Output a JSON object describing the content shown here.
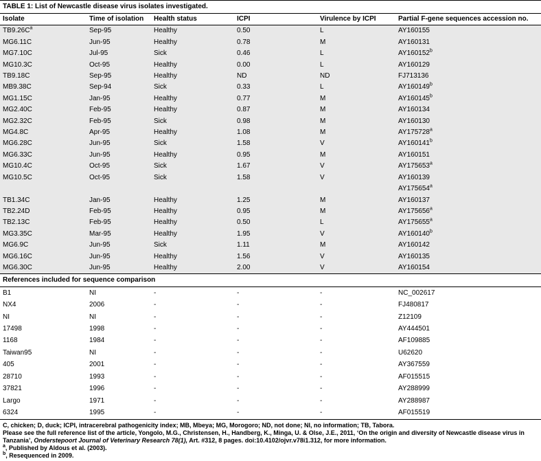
{
  "title": "TABLE 1: List of Newcastle disease virus isolates investigated.",
  "columns": [
    "Isolate",
    "Time of isolation",
    "Health status",
    "ICPI",
    "Virulence by ICPI",
    "Partial F-gene sequences accession no."
  ],
  "isolates": [
    {
      "isolate": "TB9.26C",
      "isolate_sup": "a",
      "time": "Sep-95",
      "health": "Healthy",
      "icpi": "0.50",
      "virulence": "L",
      "accession": "AY160155"
    },
    {
      "isolate": "MG6.11C",
      "time": "Jun-95",
      "health": "Healthy",
      "icpi": "0.78",
      "virulence": "M",
      "accession": "AY160131"
    },
    {
      "isolate": "MG7.10C",
      "time": "Jul-95",
      "health": "Sick",
      "icpi": "0.46",
      "virulence": "L",
      "accession": "AY160152",
      "accession_sup": "b"
    },
    {
      "isolate": "MG10.3C",
      "time": "Oct-95",
      "health": "Healthy",
      "icpi": "0.00",
      "virulence": "L",
      "accession": "AY160129"
    },
    {
      "isolate": "TB9.18C",
      "time": "Sep-95",
      "health": "Healthy",
      "icpi": "ND",
      "virulence": "ND",
      "accession": "FJ713136"
    },
    {
      "isolate": "MB9.38C",
      "time": "Sep-94",
      "health": "Sick",
      "icpi": "0.33",
      "virulence": "L",
      "accession": "AY160149",
      "accession_sup": "b"
    },
    {
      "isolate": "MG1.15C",
      "time": "Jan-95",
      "health": "Healthy",
      "icpi": "0.77",
      "virulence": "M",
      "accession": "AY160145",
      "accession_sup": "b"
    },
    {
      "isolate": "MG2.40C",
      "time": "Feb-95",
      "health": "Healthy",
      "icpi": "0.87",
      "virulence": "M",
      "accession": "AY160134"
    },
    {
      "isolate": "MG2.32C",
      "time": "Feb-95",
      "health": "Sick",
      "icpi": "0.98",
      "virulence": "M",
      "accession": "AY160130"
    },
    {
      "isolate": "MG4.8C",
      "time": "Apr-95",
      "health": "Healthy",
      "icpi": "1.08",
      "virulence": "M",
      "accession": "AY175728",
      "accession_sup": "a"
    },
    {
      "isolate": "MG6.28C",
      "time": "Jun-95",
      "health": "Sick",
      "icpi": "1.58",
      "virulence": "V",
      "accession": "AY160141",
      "accession_sup": "b"
    },
    {
      "isolate": "MG6.33C",
      "time": "Jun-95",
      "health": "Healthy",
      "icpi": "0.95",
      "virulence": "M",
      "accession": "AY160151"
    },
    {
      "isolate": "MG10.4C",
      "time": "Oct-95",
      "health": "Sick",
      "icpi": "1.67",
      "virulence": "V",
      "accession": "AY175653",
      "accession_sup": "a"
    },
    {
      "isolate": "MG10.5C",
      "time": "Oct-95",
      "health": "Sick",
      "icpi": "1.58",
      "virulence": "V",
      "accession": "AY160139"
    },
    {
      "isolate": "",
      "time": "",
      "health": "",
      "icpi": "",
      "virulence": "",
      "accession": "AY175654",
      "accession_sup": "a"
    },
    {
      "isolate": "TB1.34C",
      "time": "Jan-95",
      "health": "Healthy",
      "icpi": "1.25",
      "virulence": "M",
      "accession": "AY160137"
    },
    {
      "isolate": "TB2.24D",
      "time": "Feb-95",
      "health": "Healthy",
      "icpi": "0.95",
      "virulence": "M",
      "accession": "AY175656",
      "accession_sup": "a"
    },
    {
      "isolate": "TB2.13C",
      "time": "Feb-95",
      "health": "Healthy",
      "icpi": "0.50",
      "virulence": "L",
      "accession": "AY175655",
      "accession_sup": "a"
    },
    {
      "isolate": "MG3.35C",
      "time": "Mar-95",
      "health": "Healthy",
      "icpi": "1.95",
      "virulence": "V",
      "accession": "AY160140",
      "accession_sup": "b"
    },
    {
      "isolate": "MG6.9C",
      "time": "Jun-95",
      "health": "Sick",
      "icpi": "1.11",
      "virulence": "M",
      "accession": "AY160142"
    },
    {
      "isolate": "MG6.16C",
      "time": "Jun-95",
      "health": "Healthy",
      "icpi": "1.56",
      "virulence": "V",
      "accession": "AY160135"
    },
    {
      "isolate": "MG6.30C",
      "time": "Jun-95",
      "health": "Healthy",
      "icpi": "2.00",
      "virulence": "V",
      "accession": "AY160154"
    }
  ],
  "references_header": "References included for sequence comparison",
  "references": [
    {
      "isolate": "B1",
      "time": "NI",
      "health": "-",
      "icpi": "-",
      "virulence": "-",
      "accession": "NC_002617"
    },
    {
      "isolate": "NX4",
      "time": "2006",
      "health": "-",
      "icpi": "-",
      "virulence": "-",
      "accession": "FJ480817"
    },
    {
      "isolate": "NI",
      "time": "NI",
      "health": "-",
      "icpi": "-",
      "virulence": "-",
      "accession": "Z12109"
    },
    {
      "isolate": "17498",
      "time": "1998",
      "health": "-",
      "icpi": "-",
      "virulence": "-",
      "accession": "AY444501"
    },
    {
      "isolate": "1168",
      "time": "1984",
      "health": "-",
      "icpi": "-",
      "virulence": "-",
      "accession": "AF109885"
    },
    {
      "isolate": "Taiwan95",
      "time": "NI",
      "health": "-",
      "icpi": "-",
      "virulence": "-",
      "accession": "U62620"
    },
    {
      "isolate": "405",
      "time": "2001",
      "health": "-",
      "icpi": "-",
      "virulence": "-",
      "accession": "AY367559"
    },
    {
      "isolate": "28710",
      "time": "1993",
      "health": "-",
      "icpi": "-",
      "virulence": "-",
      "accession": "AF015515"
    },
    {
      "isolate": "37821",
      "time": "1996",
      "health": "-",
      "icpi": "-",
      "virulence": "-",
      "accession": "AY288999"
    },
    {
      "isolate": "Largo",
      "time": "1971",
      "health": "-",
      "icpi": "-",
      "virulence": "-",
      "accession": "AY288987"
    },
    {
      "isolate": "6324",
      "time": "1995",
      "health": "-",
      "icpi": "-",
      "virulence": "-",
      "accession": "AF015519"
    }
  ],
  "footnotes": {
    "abbreviations": "C, chicken; D, duck; ICPI, intracerebral pathogenicity index; MB, Mbeya; MG, Morogoro; ND, not done; NI, no information; TB, Tabora.",
    "citation_prefix": "Please see the full reference list of the article, Yongolo, M.G., Christensen, H., Handberg, K., Minga, U. & Olse, J.E., 2011, ‘On the origin and diversity of Newcastle disease virus in Tanzania’, ",
    "citation_italic": "Onderstepoort Journal of Veterinary Research 78(1),",
    "citation_suffix": " Art. #312, 8 pages. doi:10.4102/ojvr.v78i1.312, for more information.",
    "note_a_sup": "a",
    "note_a_text": ", Published by Aldous et al. (2003).",
    "note_b_sup": "b",
    "note_b_text": ", Resequenced in 2009."
  }
}
